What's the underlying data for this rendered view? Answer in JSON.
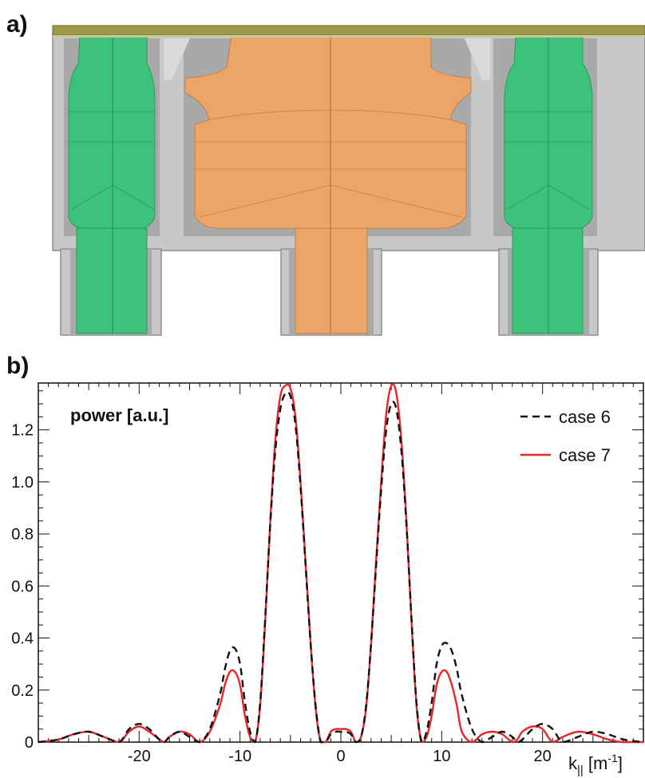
{
  "panels": {
    "a_label": "a)",
    "b_label": "b)"
  },
  "colors": {
    "green": "#3cc27a",
    "orange": "#eda468",
    "frame": "#c8c8c8",
    "frame_dark": "#9a9a9a",
    "top_plate": "#9a9a4a",
    "case6": "#111111",
    "case7": "#e8262a"
  },
  "chart_data": {
    "type": "line",
    "title": "",
    "ylabel": "power [a.u.]",
    "xlabel_main": "k",
    "xlabel_sub": "||",
    "xlabel_unit_open": " [m",
    "xlabel_unit_exp": "-1",
    "xlabel_unit_close": "]",
    "xlim": [
      -30,
      30
    ],
    "ylim": [
      0,
      1.38
    ],
    "x_ticks": [
      -20,
      -10,
      0,
      10,
      20
    ],
    "y_ticks": [
      0,
      0.2,
      0.4,
      0.6,
      0.8,
      1.0,
      1.2
    ],
    "x_tick_labels": [
      "-20",
      "-10",
      "0",
      "10",
      "20"
    ],
    "y_tick_labels": [
      "0",
      "0.2",
      "0.4",
      "0.6",
      "0.8",
      "1.0",
      "1.2"
    ],
    "legend_position": "top-right",
    "series": [
      {
        "name": "case 6",
        "style": "dashed",
        "color": "#111111",
        "x": [
          -30,
          -28,
          -26.5,
          -25,
          -23.5,
          -22,
          -21,
          -20,
          -19,
          -18,
          -17.5,
          -17,
          -16,
          -15,
          -14,
          -13,
          -12,
          -11.5,
          -11,
          -10.5,
          -10,
          -9.5,
          -9,
          -8.5,
          -8,
          -7.5,
          -7,
          -6.5,
          -6,
          -5.5,
          -5,
          -4.5,
          -4,
          -3.5,
          -3,
          -2.5,
          -2,
          -1.5,
          -1,
          -0.5,
          0,
          0.5,
          1,
          1.5,
          2,
          2.5,
          3,
          3.5,
          4,
          4.5,
          5,
          5.5,
          6,
          6.5,
          7,
          7.5,
          8,
          8.5,
          9,
          9.5,
          10,
          10.5,
          11,
          11.5,
          12,
          13,
          14,
          15,
          16,
          17,
          17.5,
          18,
          19,
          20,
          21,
          22,
          23.5,
          25,
          26.5,
          28,
          30
        ],
        "y": [
          0.0,
          0.01,
          0.03,
          0.04,
          0.02,
          0.0,
          0.05,
          0.07,
          0.05,
          0.01,
          0.0,
          0.02,
          0.04,
          0.02,
          0.0,
          0.05,
          0.18,
          0.28,
          0.35,
          0.36,
          0.3,
          0.15,
          0.04,
          0.0,
          0.15,
          0.48,
          0.84,
          1.12,
          1.28,
          1.34,
          1.33,
          1.22,
          0.98,
          0.68,
          0.38,
          0.14,
          0.0,
          0.0,
          0.03,
          0.04,
          0.04,
          0.04,
          0.03,
          0.0,
          0.02,
          0.14,
          0.38,
          0.68,
          0.97,
          1.2,
          1.3,
          1.28,
          1.12,
          0.84,
          0.48,
          0.15,
          0.0,
          0.04,
          0.15,
          0.3,
          0.37,
          0.38,
          0.35,
          0.28,
          0.18,
          0.05,
          0.0,
          0.02,
          0.04,
          0.02,
          0.0,
          0.01,
          0.05,
          0.07,
          0.05,
          0.0,
          0.02,
          0.04,
          0.03,
          0.01,
          0.0
        ]
      },
      {
        "name": "case 7",
        "style": "solid",
        "color": "#e8262a",
        "x": [
          -30,
          -28,
          -26.5,
          -25,
          -23.5,
          -22,
          -21,
          -20,
          -19,
          -18,
          -17.5,
          -17,
          -16,
          -15,
          -14,
          -13,
          -12,
          -11.5,
          -11,
          -10.5,
          -10,
          -9.5,
          -9,
          -8.5,
          -8,
          -7.5,
          -7,
          -6.5,
          -6,
          -5.5,
          -5,
          -4.5,
          -4,
          -3.5,
          -3,
          -2.5,
          -2,
          -1.5,
          -1,
          -0.5,
          0,
          0.5,
          1,
          1.5,
          2,
          2.5,
          3,
          3.5,
          4,
          4.5,
          5,
          5.5,
          6,
          6.5,
          7,
          7.5,
          8,
          8.5,
          9,
          9.5,
          10,
          10.5,
          11,
          11.5,
          12,
          13,
          14,
          15,
          16,
          17,
          17.5,
          18,
          19,
          20,
          21,
          22,
          23.5,
          25,
          26.5,
          28,
          30
        ],
        "y": [
          0.0,
          0.01,
          0.03,
          0.04,
          0.02,
          0.0,
          0.04,
          0.06,
          0.04,
          0.01,
          0.0,
          0.02,
          0.04,
          0.03,
          0.0,
          0.04,
          0.14,
          0.22,
          0.27,
          0.27,
          0.22,
          0.1,
          0.02,
          0.0,
          0.14,
          0.47,
          0.85,
          1.16,
          1.33,
          1.37,
          1.36,
          1.25,
          1.0,
          0.69,
          0.38,
          0.13,
          0.0,
          0.0,
          0.04,
          0.05,
          0.05,
          0.05,
          0.04,
          0.0,
          0.02,
          0.13,
          0.38,
          0.7,
          1.0,
          1.26,
          1.37,
          1.34,
          1.16,
          0.85,
          0.47,
          0.14,
          0.0,
          0.02,
          0.1,
          0.22,
          0.27,
          0.27,
          0.22,
          0.14,
          0.04,
          0.0,
          0.03,
          0.04,
          0.03,
          0.0,
          0.01,
          0.04,
          0.06,
          0.05,
          0.0,
          0.02,
          0.04,
          0.03,
          0.01,
          0.0,
          0.0
        ]
      }
    ]
  }
}
